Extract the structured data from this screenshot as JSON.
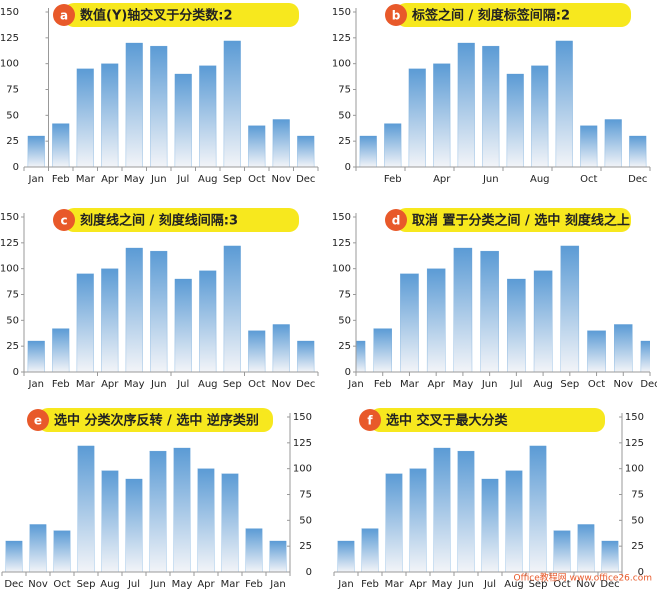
{
  "chart_data": [
    {
      "type": "bar",
      "badge": "a",
      "title": "数值(Y)轴交叉于分类数:2",
      "categories": [
        "Jan",
        "Feb",
        "Mar",
        "Apr",
        "May",
        "Jun",
        "Jul",
        "Aug",
        "Sep",
        "Oct",
        "Nov",
        "Dec"
      ],
      "values": [
        30,
        42,
        95,
        100,
        120,
        117,
        90,
        98,
        122,
        40,
        46,
        30
      ],
      "color": "#5b9bd5",
      "ylim": [
        0,
        150
      ],
      "yticks": [
        0,
        25,
        50,
        75,
        100,
        125,
        150
      ],
      "y_axis_side": "left",
      "crosses_at": 2
    },
    {
      "type": "bar",
      "badge": "b",
      "title": "标签之间 / 刻度标签间隔:2",
      "categories": [
        null,
        "Feb",
        null,
        "Apr",
        null,
        "Jun",
        null,
        "Aug",
        null,
        "Oct",
        null,
        "Dec"
      ],
      "values": [
        30,
        42,
        95,
        100,
        120,
        117,
        90,
        98,
        122,
        40,
        46,
        30
      ],
      "color": "#5b9bd5",
      "ylim": [
        0,
        150
      ],
      "yticks": [
        0,
        25,
        50,
        75,
        100,
        125,
        150
      ],
      "y_axis_side": "left",
      "label_interval": 2
    },
    {
      "type": "bar",
      "badge": "c",
      "title": "刻度线之间 / 刻度线间隔:3",
      "categories": [
        "Jan",
        "Feb",
        "Mar",
        "Apr",
        "May",
        "Jun",
        "Jul",
        "Aug",
        "Sep",
        "Oct",
        "Nov",
        "Dec"
      ],
      "values": [
        30,
        42,
        95,
        100,
        120,
        117,
        90,
        98,
        122,
        40,
        46,
        30
      ],
      "color": "#5b9bd5",
      "ylim": [
        0,
        150
      ],
      "yticks": [
        0,
        25,
        50,
        75,
        100,
        125,
        150
      ],
      "y_axis_side": "left",
      "tick_interval": 3
    },
    {
      "type": "bar",
      "badge": "d",
      "title": "取消 置于分类之间 / 选中 刻度线之上",
      "categories": [
        "Jan",
        "Feb",
        "Mar",
        "Apr",
        "May",
        "Jun",
        "Jul",
        "Aug",
        "Sep",
        "Oct",
        "Nov",
        "Dec"
      ],
      "values": [
        30,
        42,
        95,
        100,
        120,
        117,
        90,
        98,
        122,
        40,
        46,
        30
      ],
      "color": "#5b9bd5",
      "ylim": [
        0,
        150
      ],
      "yticks": [
        0,
        25,
        50,
        75,
        100,
        125,
        150
      ],
      "y_axis_side": "left",
      "on_tick_marks": true
    },
    {
      "type": "bar",
      "badge": "e",
      "title": "选中 分类次序反转 / 选中 逆序类别",
      "categories": [
        "Jan",
        "Feb",
        "Mar",
        "Apr",
        "May",
        "Jun",
        "Jul",
        "Aug",
        "Sep",
        "Oct",
        "Nov",
        "Dec"
      ],
      "values": [
        30,
        42,
        95,
        100,
        120,
        117,
        90,
        98,
        122,
        40,
        46,
        30
      ],
      "color": "#5b9bd5",
      "ylim": [
        0,
        150
      ],
      "yticks": [
        0,
        25,
        50,
        75,
        100,
        125,
        150
      ],
      "y_axis_side": "right",
      "reverse": true
    },
    {
      "type": "bar",
      "badge": "f",
      "title": "选中 交叉于最大分类",
      "categories": [
        "Jan",
        "Feb",
        "Mar",
        "Apr",
        "May",
        "Jun",
        "Jul",
        "Aug",
        "Sep",
        "Oct",
        "Nov",
        "Dec"
      ],
      "values": [
        30,
        42,
        95,
        100,
        120,
        117,
        90,
        98,
        122,
        40,
        46,
        30
      ],
      "color": "#5b9bd5",
      "ylim": [
        0,
        150
      ],
      "yticks": [
        0,
        25,
        50,
        75,
        100,
        125,
        150
      ],
      "y_axis_side": "right"
    }
  ],
  "watermark": "Office教程网 www.office26.com"
}
